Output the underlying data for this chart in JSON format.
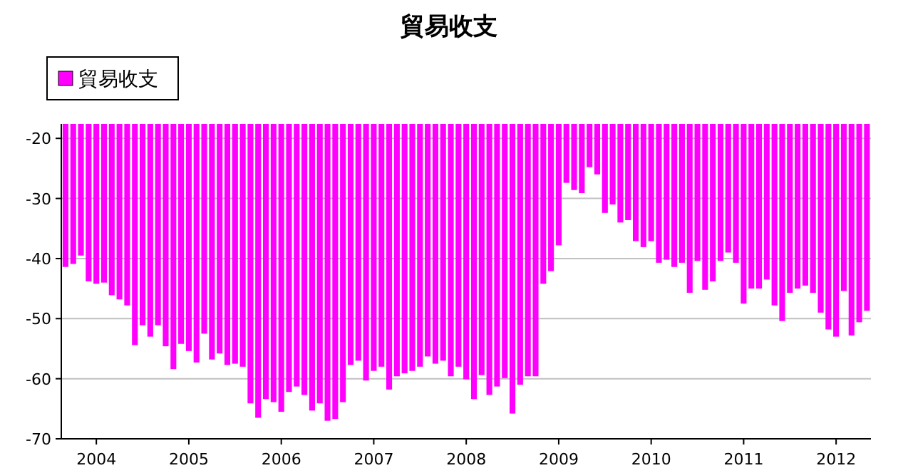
{
  "chart_data": {
    "type": "bar",
    "title": "貿易收支",
    "x": [
      "2003-09",
      "2003-10",
      "2003-11",
      "2003-12",
      "2004-01",
      "2004-02",
      "2004-03",
      "2004-04",
      "2004-05",
      "2004-06",
      "2004-07",
      "2004-08",
      "2004-09",
      "2004-10",
      "2004-11",
      "2004-12",
      "2005-01",
      "2005-02",
      "2005-03",
      "2005-04",
      "2005-05",
      "2005-06",
      "2005-07",
      "2005-08",
      "2005-09",
      "2005-10",
      "2005-11",
      "2005-12",
      "2006-01",
      "2006-02",
      "2006-03",
      "2006-04",
      "2006-05",
      "2006-06",
      "2006-07",
      "2006-08",
      "2006-09",
      "2006-10",
      "2006-11",
      "2006-12",
      "2007-01",
      "2007-02",
      "2007-03",
      "2007-04",
      "2007-05",
      "2007-06",
      "2007-07",
      "2007-08",
      "2007-09",
      "2007-10",
      "2007-11",
      "2007-12",
      "2008-01",
      "2008-02",
      "2008-03",
      "2008-04",
      "2008-05",
      "2008-06",
      "2008-07",
      "2008-08",
      "2008-09",
      "2008-10",
      "2008-11",
      "2008-12",
      "2009-01",
      "2009-02",
      "2009-03",
      "2009-04",
      "2009-05",
      "2009-06",
      "2009-07",
      "2009-08",
      "2009-09",
      "2009-10",
      "2009-11",
      "2009-12",
      "2010-01",
      "2010-02",
      "2010-03",
      "2010-04",
      "2010-05",
      "2010-06",
      "2010-07",
      "2010-08",
      "2010-09",
      "2010-10",
      "2010-11",
      "2010-12",
      "2011-01",
      "2011-02",
      "2011-03",
      "2011-04",
      "2011-05",
      "2011-06",
      "2011-07",
      "2011-08",
      "2011-09",
      "2011-10",
      "2011-11",
      "2011-12",
      "2012-01",
      "2012-02",
      "2012-03",
      "2012-04",
      "2012-05"
    ],
    "series": [
      {
        "name": "貿易收支",
        "color": "#ff00ff",
        "values": [
          -41.4,
          -40.9,
          -39.5,
          -43.8,
          -44.2,
          -44.0,
          -46.1,
          -46.8,
          -47.8,
          -54.4,
          -51.1,
          -53.0,
          -51.1,
          -54.6,
          -58.4,
          -54.2,
          -55.4,
          -57.3,
          -52.5,
          -56.8,
          -55.8,
          -57.7,
          -57.5,
          -58.0,
          -64.1,
          -66.5,
          -63.4,
          -63.9,
          -65.5,
          -62.2,
          -61.3,
          -62.7,
          -65.3,
          -64.1,
          -67.0,
          -66.7,
          -63.9,
          -57.7,
          -57.0,
          -60.3,
          -58.7,
          -58.0,
          -61.8,
          -59.6,
          -59.1,
          -58.7,
          -58.0,
          -56.3,
          -57.5,
          -57.0,
          -59.6,
          -58.0,
          -60.1,
          -63.4,
          -59.4,
          -62.7,
          -61.3,
          -59.9,
          -65.8,
          -61.0,
          -59.6,
          -59.6,
          -44.2,
          -42.1,
          -37.8,
          -27.4,
          -28.6,
          -29.1,
          -24.8,
          -26.0,
          -32.4,
          -31.0,
          -34.0,
          -33.6,
          -37.1,
          -38.1,
          -37.1,
          -40.7,
          -40.2,
          -41.4,
          -40.7,
          -45.7,
          -40.4,
          -45.2,
          -43.8,
          -40.4,
          -39.0,
          -40.7,
          -47.5,
          -45.0,
          -45.0,
          -43.5,
          -47.8,
          -50.4,
          -45.7,
          -45.0,
          -44.5,
          -45.7,
          -49.0,
          -51.8,
          -53.0,
          -45.4,
          -52.8,
          -50.6,
          -48.7
        ]
      }
    ],
    "xlim": [
      "2003-08-15",
      "2012-05-17"
    ],
    "xticks": [
      {
        "value": "2004-01-01",
        "label": "2004"
      },
      {
        "value": "2005-01-01",
        "label": "2005"
      },
      {
        "value": "2006-01-01",
        "label": "2006"
      },
      {
        "value": "2007-01-01",
        "label": "2007"
      },
      {
        "value": "2008-01-01",
        "label": "2008"
      },
      {
        "value": "2009-01-01",
        "label": "2009"
      },
      {
        "value": "2010-01-01",
        "label": "2010"
      },
      {
        "value": "2011-01-01",
        "label": "2011"
      },
      {
        "value": "2012-01-01",
        "label": "2012"
      }
    ],
    "ylim": [
      -70,
      -17.6
    ],
    "yticks": [
      -70,
      -60,
      -50,
      -40,
      -30,
      -20
    ],
    "grid": "y",
    "legend": "top left"
  }
}
